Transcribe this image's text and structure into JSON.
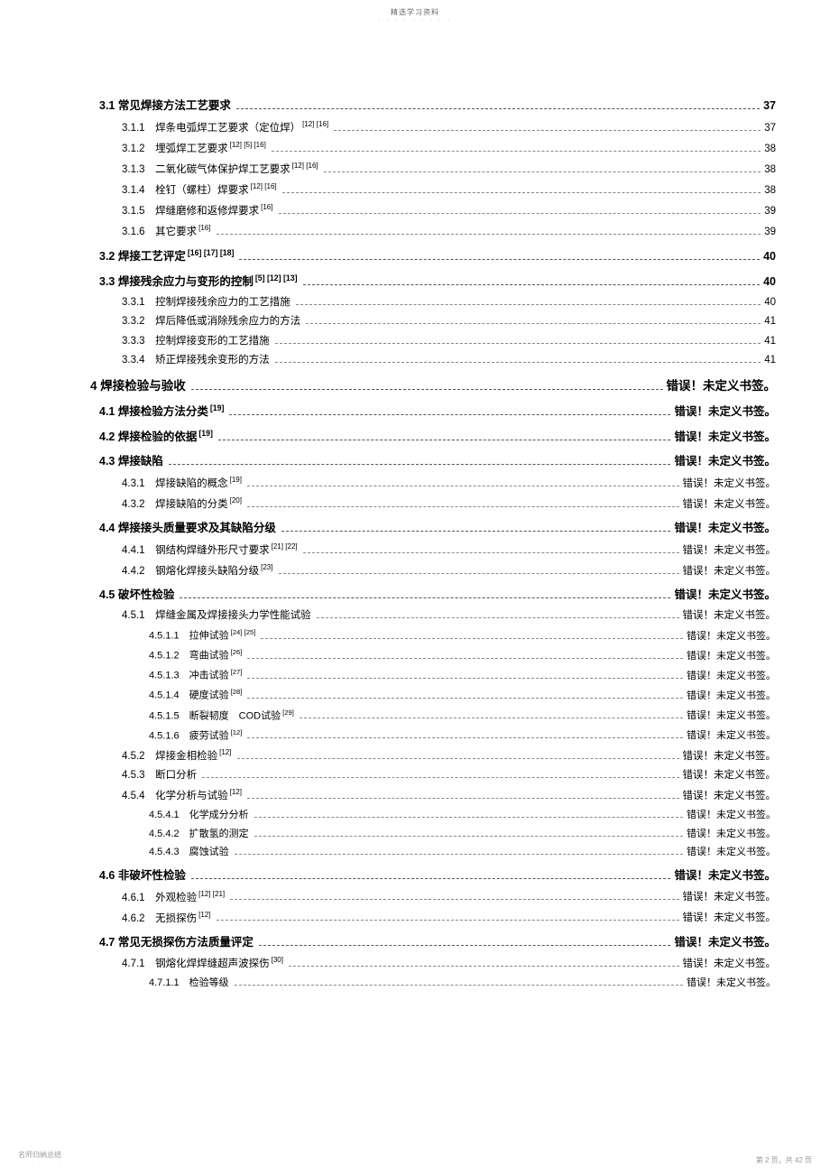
{
  "header": {
    "title": "精选学习资料",
    "sub": "- - - - - - - - -"
  },
  "footer": {
    "left": "名师归纳总结",
    "left_dots": "- - - - - - -",
    "right": "第 2 页，共 42 页"
  },
  "toc": [
    {
      "lvl": "h2",
      "bold": true,
      "num": "3.1",
      "title": "常见焊接方法工艺要求",
      "sup": "",
      "leader": "thick",
      "pg": "37"
    },
    {
      "lvl": "h3",
      "num": "3.1.1",
      "title": "焊条电弧焊工艺要求（定位焊）",
      "sup": "[12] [16]",
      "pg": "37"
    },
    {
      "lvl": "h3",
      "num": "3.1.2",
      "title": "埋弧焊工艺要求",
      "sup": "[12] [5] [16]",
      "pg": "38"
    },
    {
      "lvl": "h3",
      "num": "3.1.3",
      "title": "二氧化碳气体保护焊工艺要求",
      "sup": "[12] [16]",
      "pg": "38"
    },
    {
      "lvl": "h3",
      "num": "3.1.4",
      "title": "栓钉（螺柱）焊要求",
      "sup": "[12] [16]",
      "pg": "38"
    },
    {
      "lvl": "h3",
      "num": "3.1.5",
      "title": "焊缝磨修和返修焊要求",
      "sup": "[16]",
      "pg": "39"
    },
    {
      "lvl": "h3",
      "num": "3.1.6",
      "title": "其它要求",
      "sup": "[16]",
      "pg": "39"
    },
    {
      "lvl": "h2",
      "bold": true,
      "num": "3.2",
      "title": "焊接工艺评定",
      "sup": "[16] [17] [18]",
      "leader": "thick",
      "pg": "40"
    },
    {
      "lvl": "h2",
      "bold": true,
      "num": "3.3",
      "title": "焊接残余应力与变形的控制",
      "sup": "[5] [12] [13]",
      "leader": "thick",
      "pg": "40"
    },
    {
      "lvl": "h3",
      "num": "3.3.1",
      "title": "控制焊接残余应力的工艺措施",
      "sup": "",
      "pg": "40"
    },
    {
      "lvl": "h3",
      "num": "3.3.2",
      "title": "焊后降低或消除残余应力的方法",
      "sup": "",
      "pg": "41"
    },
    {
      "lvl": "h3",
      "num": "3.3.3",
      "title": "控制焊接变形的工艺措施",
      "sup": "",
      "pg": "41"
    },
    {
      "lvl": "h3",
      "num": "3.3.4",
      "title": "矫正焊接残余变形的方法",
      "sup": "",
      "pg": "41"
    },
    {
      "lvl": "h1",
      "bold": true,
      "num": "4",
      "title": "焊接检验与验收",
      "sup": "",
      "leader": "thick",
      "pg": "错误！未定义书签。"
    },
    {
      "lvl": "h2",
      "bold": true,
      "num": "4.1",
      "title": "焊接检验方法分类",
      "sup": "[19]",
      "leader": "thick",
      "pg": "错误！未定义书签。"
    },
    {
      "lvl": "h2",
      "bold": true,
      "num": "4.2",
      "title": "焊接检验的依据",
      "sup": "[19]",
      "leader": "thick",
      "pg": "错误！未定义书签。"
    },
    {
      "lvl": "h2",
      "bold": true,
      "num": "4.3",
      "title": "焊接缺陷",
      "sup": "",
      "leader": "thick",
      "pg": "错误！未定义书签。"
    },
    {
      "lvl": "h3",
      "num": "4.3.1",
      "title": "焊接缺陷的概念",
      "sup": "[19]",
      "pg": "错误！未定义书签。"
    },
    {
      "lvl": "h3",
      "num": "4.3.2",
      "title": "焊接缺陷的分类",
      "sup": "[20]",
      "pg": "错误！未定义书签。"
    },
    {
      "lvl": "h2",
      "bold": true,
      "num": "4.4",
      "title": "焊接接头质量要求及其缺陷分级",
      "sup": "",
      "leader": "thick",
      "pg": "错误！未定义书签。"
    },
    {
      "lvl": "h3",
      "num": "4.4.1",
      "title": "钢结构焊缝外形尺寸要求",
      "sup": "[21] [22]",
      "pg": "错误！未定义书签。"
    },
    {
      "lvl": "h3",
      "num": "4.4.2",
      "title": "钢熔化焊接头缺陷分级",
      "sup": "[23]",
      "pg": "错误！未定义书签。"
    },
    {
      "lvl": "h2",
      "bold": true,
      "num": "4.5",
      "title": "破坏性检验",
      "sup": "",
      "leader": "thick",
      "pg": "错误！未定义书签。"
    },
    {
      "lvl": "h3",
      "num": "4.5.1",
      "title": "焊缝金属及焊接接头力学性能试验",
      "sup": "",
      "pg": "错误！未定义书签。"
    },
    {
      "lvl": "h4",
      "num": "4.5.1.1",
      "title": "拉伸试验",
      "sup": "[24] [25]",
      "pg": "错误！未定义书签。"
    },
    {
      "lvl": "h4",
      "num": "4.5.1.2",
      "title": "弯曲试验",
      "sup": "[26]",
      "pg": "错误！未定义书签。"
    },
    {
      "lvl": "h4",
      "num": "4.5.1.3",
      "title": "冲击试验",
      "sup": "[27]",
      "pg": "错误！未定义书签。"
    },
    {
      "lvl": "h4",
      "num": "4.5.1.4",
      "title": "硬度试验",
      "sup": "[28]",
      "pg": "错误！未定义书签。"
    },
    {
      "lvl": "h4",
      "num": "4.5.1.5",
      "title": "断裂韧度　COD试验",
      "sup": "[29]",
      "pg": "错误！未定义书签。"
    },
    {
      "lvl": "h4",
      "num": "4.5.1.6",
      "title": "疲劳试验",
      "sup": "[12]",
      "pg": "错误！未定义书签。"
    },
    {
      "lvl": "h3",
      "num": "4.5.2",
      "title": "焊接金相检验",
      "sup": "[12]",
      "pg": "错误！未定义书签。"
    },
    {
      "lvl": "h3",
      "num": "4.5.3",
      "title": "断口分析",
      "sup": "",
      "pg": "错误！未定义书签。"
    },
    {
      "lvl": "h3",
      "num": "4.5.4",
      "title": "化学分析与试验",
      "sup": "[12]",
      "pg": "错误！未定义书签。"
    },
    {
      "lvl": "h4",
      "num": "4.5.4.1",
      "title": "化学成分分析",
      "sup": "",
      "pg": "错误！未定义书签。"
    },
    {
      "lvl": "h4",
      "num": "4.5.4.2",
      "title": "扩散氢的测定",
      "sup": "",
      "pg": "错误！未定义书签。"
    },
    {
      "lvl": "h4",
      "num": "4.5.4.3",
      "title": "腐蚀试验",
      "sup": "",
      "pg": "错误！未定义书签。"
    },
    {
      "lvl": "h2",
      "bold": true,
      "num": "4.6",
      "title": "非破坏性检验",
      "sup": "",
      "leader": "thick",
      "pg": "错误！未定义书签。"
    },
    {
      "lvl": "h3",
      "num": "4.6.1",
      "title": "外观检验",
      "sup": "[12] [21]",
      "pg": "错误！未定义书签。"
    },
    {
      "lvl": "h3",
      "num": "4.6.2",
      "title": "无损探伤",
      "sup": "[12]",
      "pg": "错误！未定义书签。"
    },
    {
      "lvl": "h2",
      "bold": true,
      "num": "4.7",
      "title": "常见无损探伤方法质量评定",
      "sup": "",
      "leader": "thick",
      "pg": "错误！未定义书签。"
    },
    {
      "lvl": "h3",
      "num": "4.7.1",
      "title": "钢熔化焊焊缝超声波探伤",
      "sup": "[30]",
      "pg": "错误！未定义书签。"
    },
    {
      "lvl": "h4",
      "num": "4.7.1.1",
      "title": "检验等级",
      "sup": "",
      "pg": "错误！未定义书签。"
    }
  ]
}
